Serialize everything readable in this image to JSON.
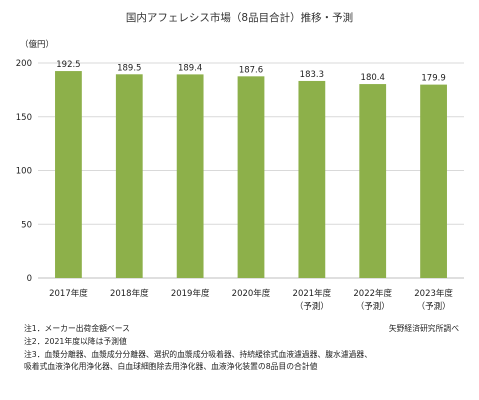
{
  "chart_data": {
    "type": "bar",
    "title": "国内アフェレシス市場（8品目合計）推移・予測",
    "unit_label": "（億円）",
    "categories": [
      [
        "2017年度"
      ],
      [
        "2018年度"
      ],
      [
        "2019年度"
      ],
      [
        "2020年度"
      ],
      [
        "2021年度",
        "（予測）"
      ],
      [
        "2022年度",
        "（予測）"
      ],
      [
        "2023年度",
        "（予測）"
      ]
    ],
    "values": [
      192.5,
      189.5,
      189.4,
      187.6,
      183.3,
      180.4,
      179.9
    ],
    "value_labels": [
      "192.5",
      "189.5",
      "189.4",
      "187.6",
      "183.3",
      "180.4",
      "179.9"
    ],
    "y_ticks": [
      0,
      50,
      100,
      150,
      200
    ],
    "ylim": [
      0,
      200
    ],
    "grid": true,
    "bar_color": "#8db04a",
    "grid_color": "#d9d9d9"
  },
  "notes": [
    "注1．メーカー出荷金額ベース",
    "注2．2021年度以降は予測値",
    "注3．血漿分離器、血漿成分分離器、選択的血漿成分吸着器、持続緩徐式血液濾過器、腹水濾過器、",
    "吸着式血液浄化用浄化器、白血球細胞除去用浄化器、血液浄化装置の8品目の合計値"
  ],
  "source": "矢野経済研究所調べ"
}
